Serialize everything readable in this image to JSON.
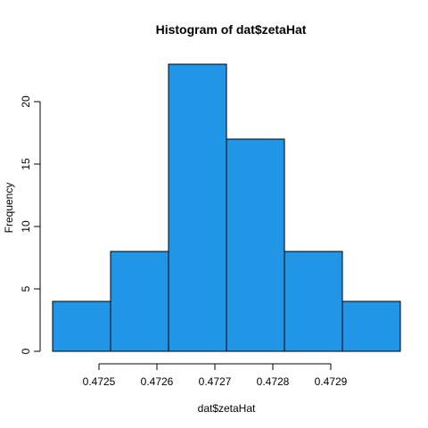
{
  "chart_data": {
    "type": "bar",
    "title": "Histogram of dat$zetaHat",
    "xlabel": "dat$zetaHat",
    "ylabel": "Frequency",
    "bin_edges": [
      0.47242,
      0.47252,
      0.47262,
      0.47272,
      0.47282,
      0.47292,
      0.47302
    ],
    "values": [
      4,
      8,
      23,
      17,
      8,
      4
    ],
    "xlim": [
      0.47242,
      0.47302
    ],
    "ylim": [
      0,
      23
    ],
    "x_ticks": [
      0.4725,
      0.4726,
      0.4727,
      0.4728,
      0.4729
    ],
    "x_tick_labels": [
      "0.4725",
      "0.4726",
      "0.4727",
      "0.4728",
      "0.4729"
    ],
    "y_ticks": [
      0,
      5,
      10,
      15,
      20
    ],
    "y_tick_labels": [
      "0",
      "5",
      "10",
      "15",
      "20"
    ],
    "bar_color": "#2196e6",
    "grid": false
  }
}
